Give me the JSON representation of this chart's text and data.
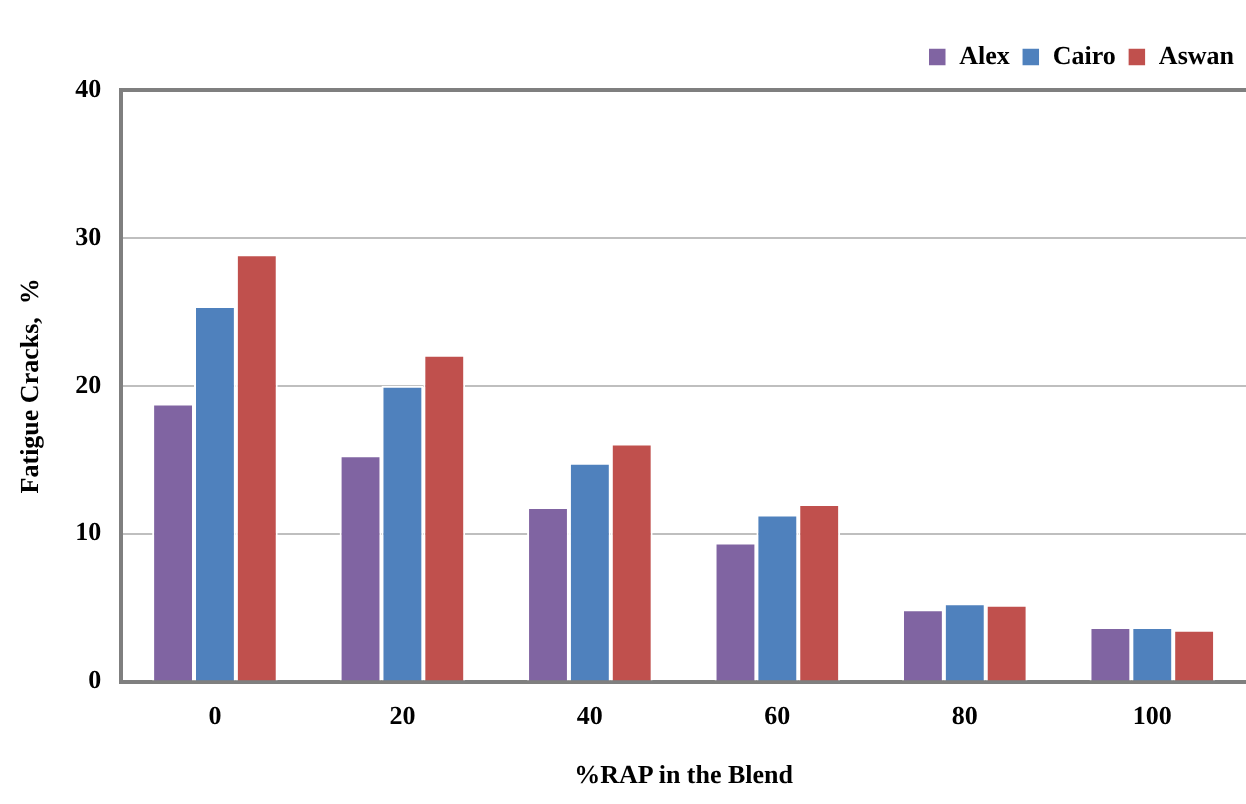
{
  "chart_data": {
    "type": "bar",
    "xlabel": "%RAP in the Blend",
    "ylabel": "Fatigue Cracks,  %",
    "categories": [
      "0",
      "20",
      "40",
      "60",
      "80",
      "100"
    ],
    "series": [
      {
        "name": "Alex",
        "color": "#8064a2",
        "values": [
          18.8,
          15.3,
          11.8,
          9.4,
          4.9,
          3.7
        ]
      },
      {
        "name": "Cairo",
        "color": "#4f81bd",
        "values": [
          25.4,
          20.0,
          14.8,
          11.3,
          5.3,
          3.7
        ]
      },
      {
        "name": "Aswan",
        "color": "#c0504d",
        "values": [
          28.9,
          22.1,
          16.1,
          12.0,
          5.2,
          3.5
        ]
      }
    ],
    "ylim": [
      0,
      40
    ],
    "yticks": [
      0,
      10,
      20,
      30,
      40
    ],
    "grid": "y",
    "legend": "top right"
  }
}
